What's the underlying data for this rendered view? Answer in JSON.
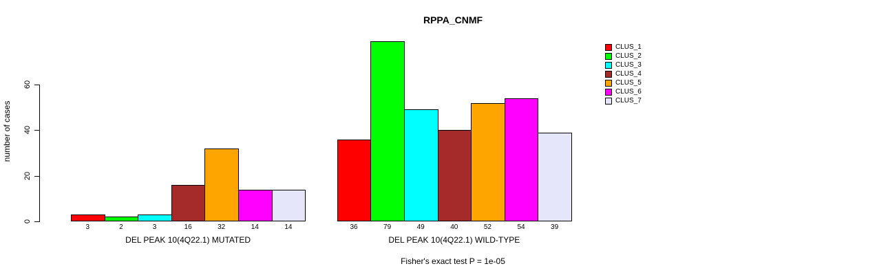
{
  "chart_data": {
    "type": "bar",
    "title": "RPPA_CNMF",
    "ylabel": "number of cases",
    "ylim": [
      0,
      60
    ],
    "yticks": [
      0,
      20,
      40,
      60
    ],
    "grid": false,
    "legend_position": "right",
    "series_names": [
      "CLUS_1",
      "CLUS_2",
      "CLUS_3",
      "CLUS_4",
      "CLUS_5",
      "CLUS_6",
      "CLUS_7"
    ],
    "series_colors": [
      "#FF0000",
      "#00FF00",
      "#00FFFF",
      "#A52A2A",
      "#FFA500",
      "#FF00FF",
      "#E6E6FA"
    ],
    "groups": [
      {
        "label": "DEL PEAK 10(4Q22.1) MUTATED",
        "values": [
          3,
          2,
          3,
          16,
          32,
          14,
          14
        ]
      },
      {
        "label": "DEL PEAK 10(4Q22.1) WILD-TYPE",
        "values": [
          36,
          79,
          49,
          40,
          52,
          54,
          39
        ]
      }
    ],
    "annotation": "Fisher's exact test P = 1e-05"
  }
}
